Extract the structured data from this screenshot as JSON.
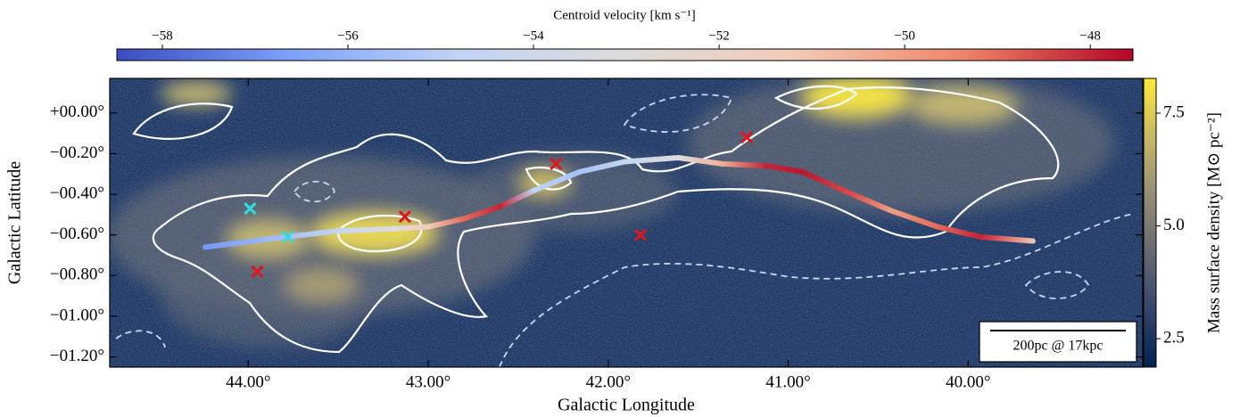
{
  "chart_data": {
    "type": "scatter",
    "x_label": "Galactic Longitude",
    "y_label": "Galactic Latitude",
    "xlim": [
      44.77,
      39.03
    ],
    "ylim": [
      -1.25,
      0.17
    ],
    "xticks": [
      {
        "value": 44,
        "label": "44.00°"
      },
      {
        "value": 43,
        "label": "43.00°"
      },
      {
        "value": 42,
        "label": "42.00°"
      },
      {
        "value": 41,
        "label": "41.00°"
      },
      {
        "value": 40,
        "label": "40.00°"
      }
    ],
    "yticks": [
      {
        "value": 0,
        "label": "+00.00°"
      },
      {
        "value": -0.2,
        "label": "−00.20°"
      },
      {
        "value": -0.4,
        "label": "−00.40°"
      },
      {
        "value": -0.6,
        "label": "−00.60°"
      },
      {
        "value": -0.8,
        "label": "−00.80°"
      },
      {
        "value": -1.0,
        "label": "−01.00°"
      },
      {
        "value": -1.2,
        "label": "−01.20°"
      }
    ],
    "markers": [
      {
        "color": "#e0161c",
        "x": [
          43.95,
          43.13,
          42.29,
          41.82,
          41.23
        ],
        "y": [
          -0.78,
          -0.51,
          -0.25,
          -0.6,
          -0.12
        ]
      },
      {
        "color": "#2de0e0",
        "x": [
          43.99,
          43.78
        ],
        "y": [
          -0.47,
          -0.61
        ]
      }
    ],
    "filament": {
      "x": [
        44.24,
        43.89,
        43.5,
        43.2,
        43.0,
        42.8,
        42.6,
        42.41,
        42.16,
        41.91,
        41.61,
        41.37,
        41.12,
        40.92,
        40.67,
        40.43,
        40.17,
        39.93,
        39.64
      ],
      "y": [
        -0.66,
        -0.62,
        -0.58,
        -0.57,
        -0.56,
        -0.52,
        -0.46,
        -0.38,
        -0.29,
        -0.24,
        -0.22,
        -0.25,
        -0.26,
        -0.29,
        -0.39,
        -0.48,
        -0.56,
        -0.61,
        -0.63
      ],
      "velocity": [
        -56.8,
        -55.8,
        -54.5,
        -53,
        -51.5,
        -49,
        -48,
        -54.8,
        -55.5,
        -54.5,
        -53,
        -50.5,
        -48,
        -47.8,
        -48.5,
        -50,
        -49,
        -48,
        -51
      ]
    },
    "colorbar_velocity": {
      "label": "Centroid velocity [km s⁻¹]",
      "lim": [
        -58.49,
        -47.54
      ],
      "ticks": [
        {
          "value": -58,
          "label": "−58"
        },
        {
          "value": -56,
          "label": "−56"
        },
        {
          "value": -54,
          "label": "−54"
        },
        {
          "value": -52,
          "label": "−52"
        },
        {
          "value": -50,
          "label": "−50"
        },
        {
          "value": -48,
          "label": "−48"
        }
      ],
      "colors": [
        "#3b4cc0",
        "#7b9ff9",
        "#c0d4f5",
        "#dddcdc",
        "#f2cbb7",
        "#ee8468",
        "#b40426"
      ]
    },
    "colorbar_density": {
      "label": "Mass surface density [M⊙ pc⁻²]",
      "lim": [
        1.87,
        8.27
      ],
      "ticks": [
        7.5,
        {
          "value": 5,
          "label": "5.0"
        },
        2.5
      ],
      "colors": [
        "#00224e",
        "#35456c",
        "#666970",
        "#948e77",
        "#c8b866",
        "#fee838"
      ]
    },
    "scalebar_label": "200pc @ 17kpc"
  }
}
